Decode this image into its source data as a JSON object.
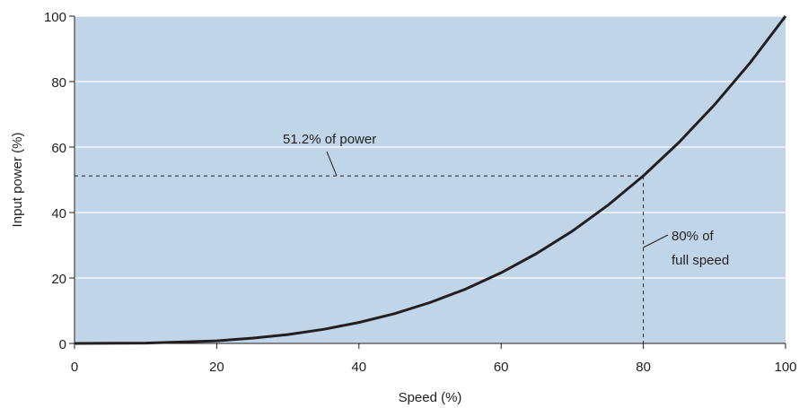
{
  "chart_data": {
    "type": "line",
    "title": "",
    "xlabel": "Speed (%)",
    "ylabel": "Input power (%)",
    "xlim": [
      0,
      100
    ],
    "ylim": [
      0,
      100
    ],
    "xticks": [
      0,
      20,
      40,
      60,
      80,
      100
    ],
    "yticks": [
      0,
      20,
      40,
      60,
      80,
      100
    ],
    "grid": "horizontal",
    "series": [
      {
        "x": [
          0,
          10,
          20,
          25,
          30,
          35,
          40,
          45,
          50,
          55,
          60,
          65,
          70,
          75,
          80,
          85,
          90,
          95,
          100
        ],
        "values": [
          0,
          0.1,
          0.8,
          1.6,
          2.7,
          4.3,
          6.4,
          9.1,
          12.5,
          16.6,
          21.6,
          27.5,
          34.3,
          42.2,
          51.2,
          61.4,
          72.9,
          85.7,
          100
        ]
      }
    ],
    "reference": {
      "x": 80,
      "y": 51.2
    },
    "annotations": [
      {
        "text": "51.2% of power"
      },
      {
        "text": "80% of"
      },
      {
        "text": "full speed"
      }
    ],
    "colors": {
      "plot_background": "#c0d6e8",
      "gridline": "#ffffff",
      "curve": "#231f20",
      "text": "#231f20"
    }
  }
}
